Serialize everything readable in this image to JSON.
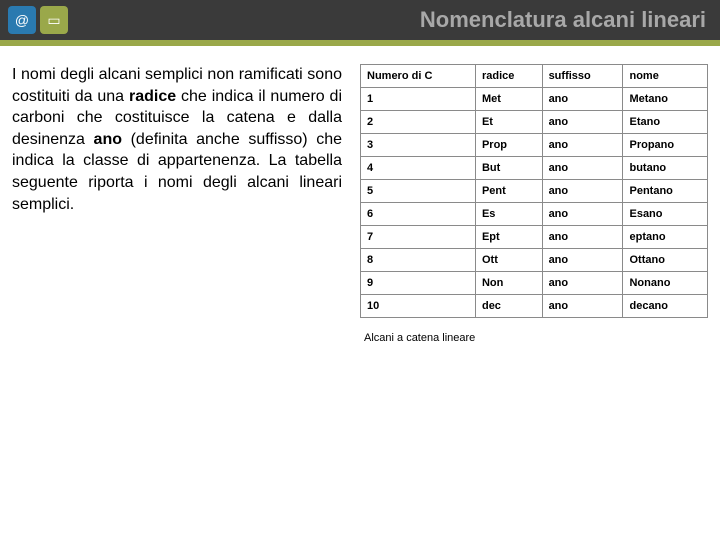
{
  "header": {
    "title": "Nomenclatura alcani lineari",
    "title_color": "#a8a8a8",
    "bg_color": "#3a3a3a",
    "accent_color": "#9aa84a",
    "icons": [
      {
        "name": "at-icon",
        "glyph": "@",
        "bg": "#2a7ab0"
      },
      {
        "name": "sheet-icon",
        "glyph": "▭",
        "bg": "#9aa84a"
      }
    ]
  },
  "paragraph": {
    "pre": "I nomi degli alcani semplici non ramificati sono costituiti da una ",
    "b1": "radice",
    "mid1": " che indica il numero di carboni che costituisce la catena e dalla desinenza ",
    "b2": "ano",
    "mid2": " (definita anche suffisso) che indica la classe di appartenenza. La tabella seguente riporta i nomi degli alcani lineari semplici."
  },
  "table": {
    "columns": [
      "Numero di C",
      "radice",
      "suffisso",
      "nome"
    ],
    "rows": [
      [
        "1",
        "Met",
        "ano",
        "Metano"
      ],
      [
        "2",
        "Et",
        "ano",
        "Etano"
      ],
      [
        "3",
        "Prop",
        "ano",
        "Propano"
      ],
      [
        "4",
        "But",
        "ano",
        "butano"
      ],
      [
        "5",
        "Pent",
        "ano",
        "Pentano"
      ],
      [
        "6",
        "Es",
        "ano",
        "Esano"
      ],
      [
        "7",
        "Ept",
        "ano",
        "eptano"
      ],
      [
        "8",
        "Ott",
        "ano",
        "Ottano"
      ],
      [
        "9",
        "Non",
        "ano",
        "Nonano"
      ],
      [
        "10",
        "dec",
        "ano",
        "decano"
      ]
    ],
    "border_color": "#8a8a8a",
    "caption": "Alcani a catena lineare"
  }
}
